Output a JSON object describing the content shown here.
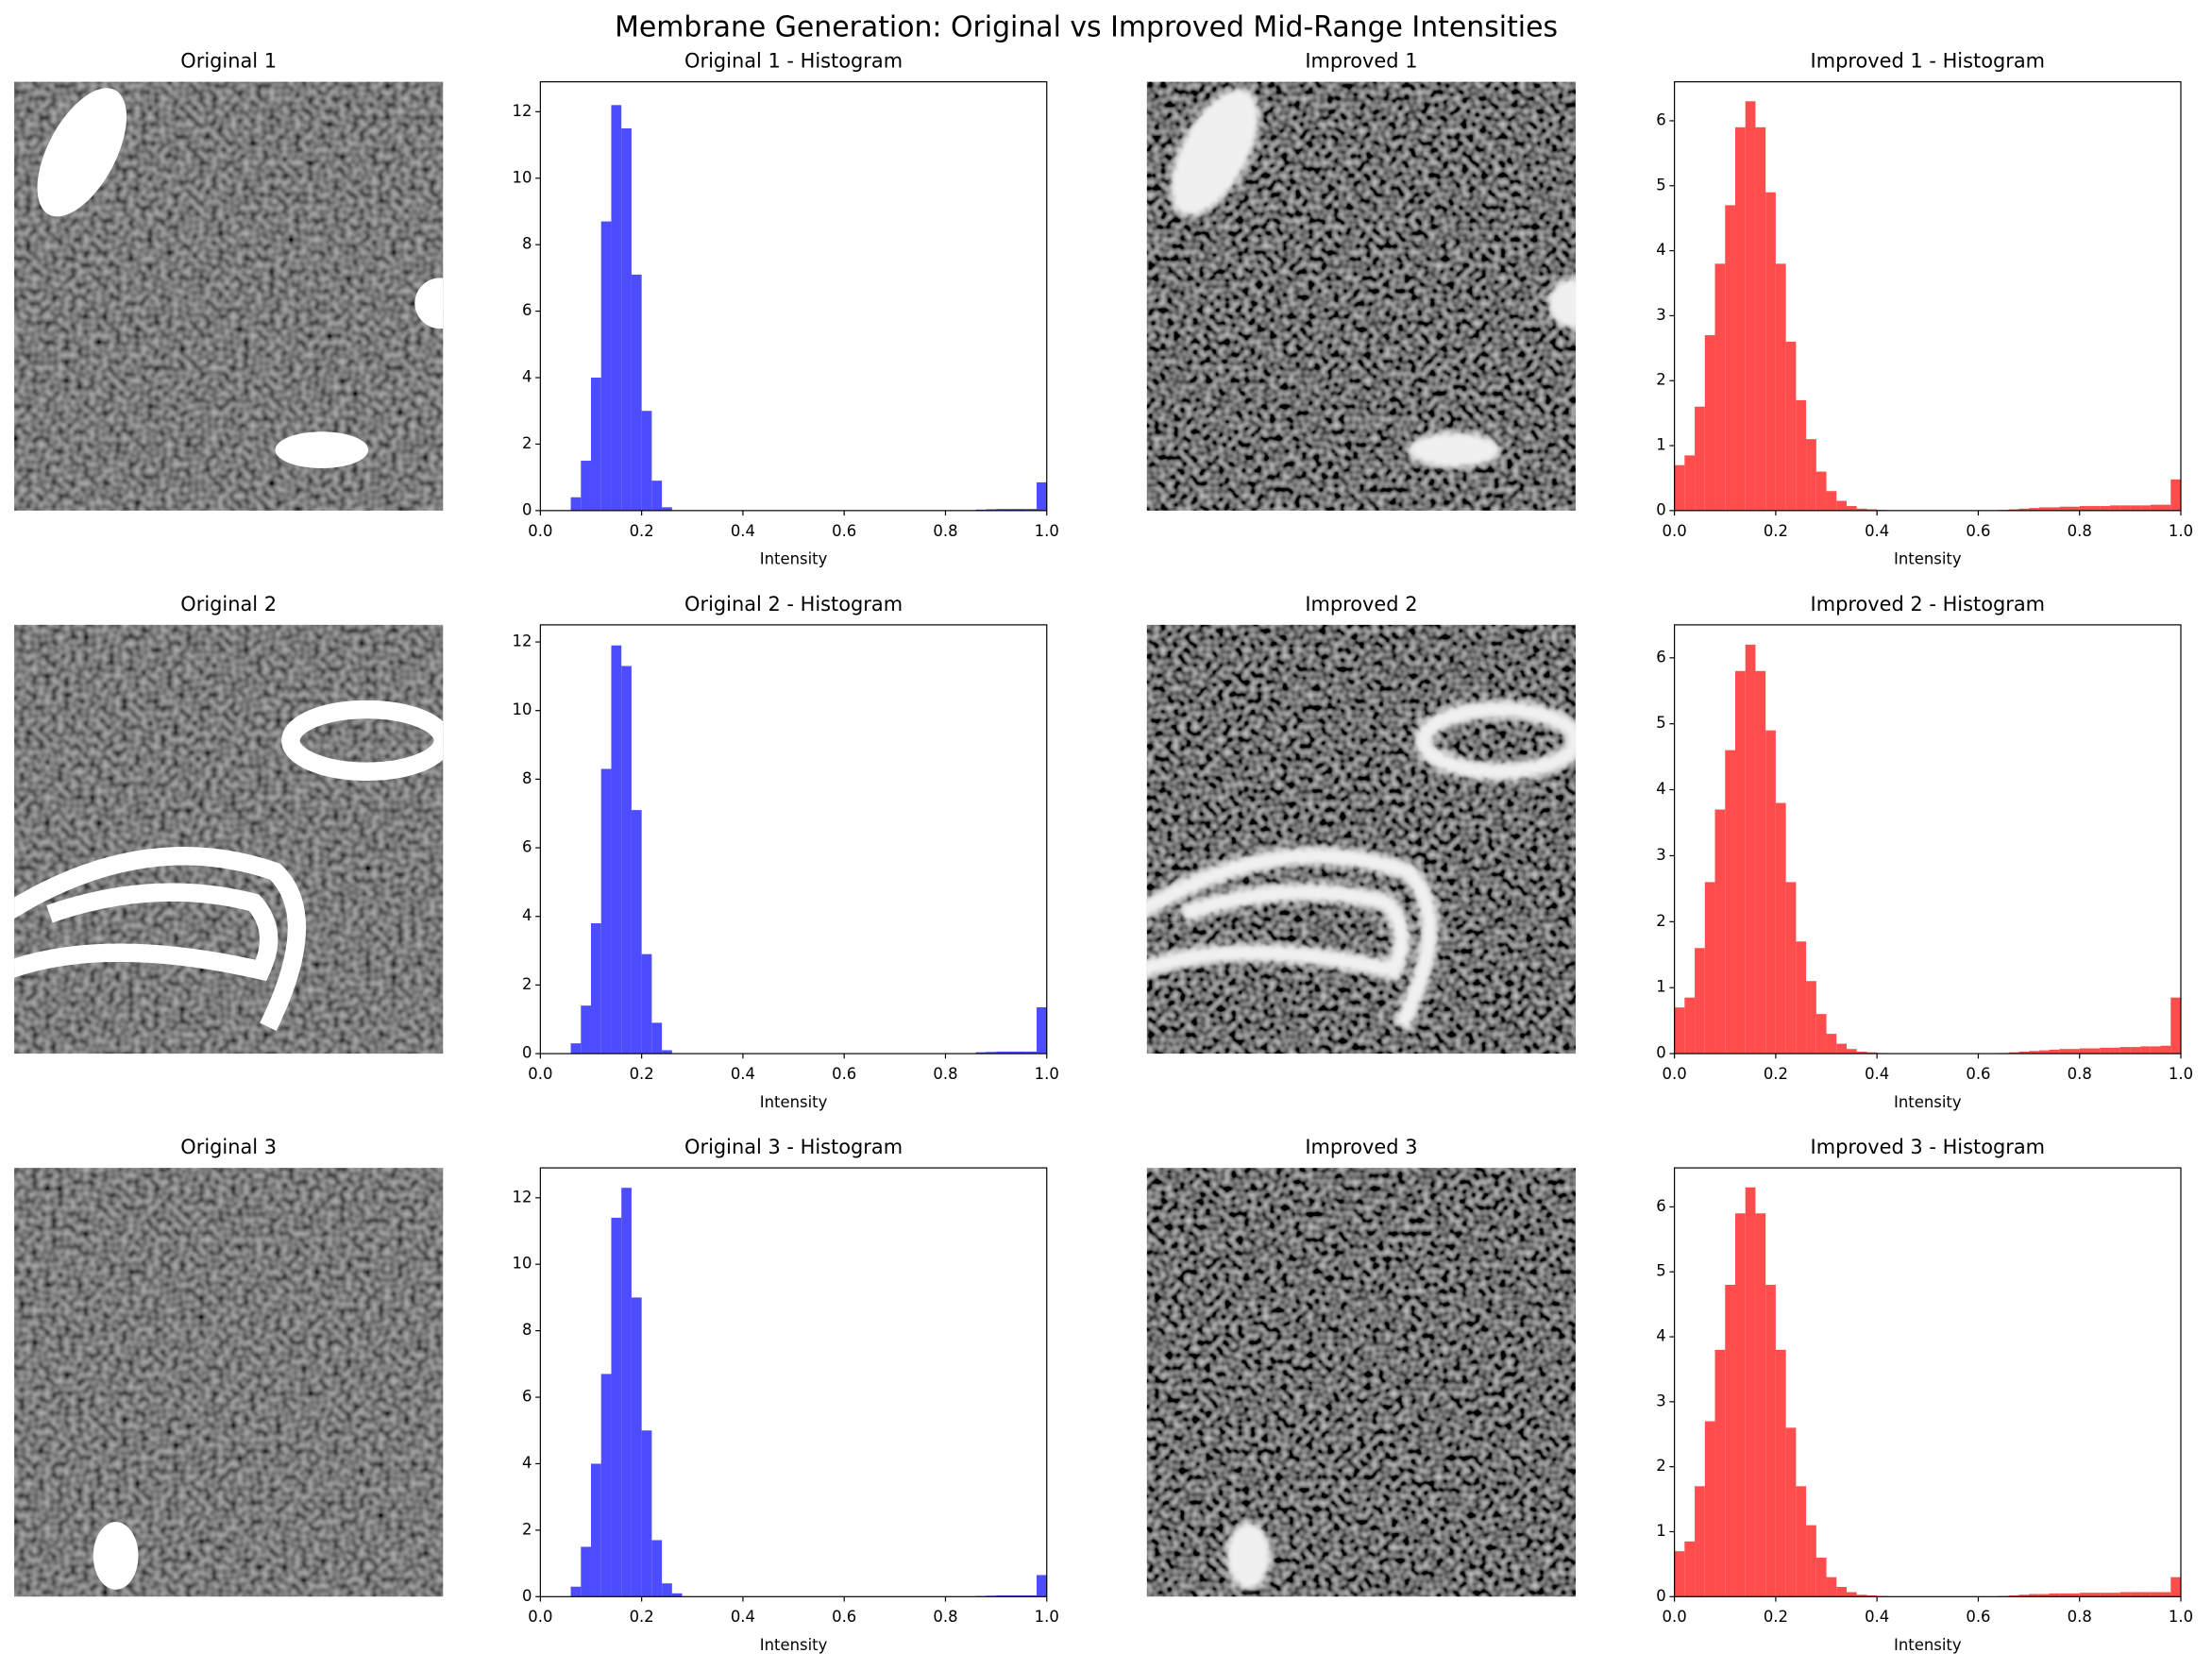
{
  "title": "Membrane Generation: Original vs Improved Mid-Range Intensities",
  "image_panels": [
    {
      "title": "Original 1"
    },
    {
      "title": "Improved 1"
    },
    {
      "title": "Original 2"
    },
    {
      "title": "Improved 2"
    },
    {
      "title": "Original 3"
    },
    {
      "title": "Improved 3"
    }
  ],
  "chart_data": [
    {
      "type": "histogram",
      "title": "Original 1 - Histogram",
      "xlabel": "Intensity",
      "color": "#4d4dff",
      "bins": [
        0,
        0.02,
        0.04,
        0.06,
        0.08,
        0.1,
        0.12,
        0.14,
        0.16,
        0.18,
        0.2,
        0.22,
        0.24,
        0.26,
        0.28,
        0.3,
        0.32,
        0.34,
        0.36,
        0.38,
        0.4,
        0.42,
        0.44,
        0.46,
        0.48,
        0.5,
        0.52,
        0.54,
        0.56,
        0.58,
        0.6,
        0.62,
        0.64,
        0.66,
        0.68,
        0.7,
        0.72,
        0.74,
        0.76,
        0.78,
        0.8,
        0.82,
        0.84,
        0.86,
        0.88,
        0.9,
        0.92,
        0.94,
        0.96,
        0.98,
        1
      ],
      "values": [
        0,
        0,
        0,
        0.4,
        1.5,
        4.0,
        8.7,
        12.2,
        11.5,
        7.1,
        3.0,
        0.9,
        0.1,
        0,
        0,
        0,
        0,
        0,
        0,
        0,
        0,
        0,
        0,
        0,
        0,
        0,
        0,
        0,
        0,
        0,
        0,
        0,
        0,
        0,
        0,
        0,
        0,
        0,
        0,
        0,
        0,
        0,
        0,
        0.03,
        0.04,
        0.05,
        0.05,
        0.05,
        0.05,
        0.85
      ],
      "xlim": [
        0,
        1
      ],
      "xticks": [
        {
          "value": 0,
          "label": "0.0"
        },
        0.2,
        0.4,
        0.6,
        0.8,
        {
          "value": 1,
          "label": "1.0"
        }
      ],
      "ylim": [
        0,
        12.9
      ],
      "yticks": [
        0,
        2,
        4,
        6,
        8,
        10,
        12
      ]
    },
    {
      "type": "histogram",
      "title": "Improved 1 - Histogram",
      "xlabel": "Intensity",
      "color": "#ff4d4d",
      "bins": [
        0,
        0.02,
        0.04,
        0.06,
        0.08,
        0.1,
        0.12,
        0.14,
        0.16,
        0.18,
        0.2,
        0.22,
        0.24,
        0.26,
        0.28,
        0.3,
        0.32,
        0.34,
        0.36,
        0.38,
        0.4,
        0.42,
        0.44,
        0.46,
        0.48,
        0.5,
        0.52,
        0.54,
        0.56,
        0.58,
        0.6,
        0.62,
        0.64,
        0.66,
        0.68,
        0.7,
        0.72,
        0.74,
        0.76,
        0.78,
        0.8,
        0.82,
        0.84,
        0.86,
        0.88,
        0.9,
        0.92,
        0.94,
        0.96,
        0.98,
        1
      ],
      "values": [
        0.7,
        0.85,
        1.6,
        2.7,
        3.8,
        4.7,
        5.9,
        6.3,
        5.9,
        4.9,
        3.8,
        2.6,
        1.7,
        1.1,
        0.6,
        0.3,
        0.15,
        0.07,
        0.03,
        0.02,
        0.01,
        0,
        0,
        0,
        0,
        0,
        0,
        0,
        0,
        0,
        0,
        0,
        0.01,
        0.02,
        0.03,
        0.04,
        0.05,
        0.05,
        0.06,
        0.06,
        0.07,
        0.07,
        0.07,
        0.08,
        0.08,
        0.08,
        0.08,
        0.09,
        0.09,
        0.48
      ],
      "xlim": [
        0,
        1
      ],
      "xticks": [
        {
          "value": 0,
          "label": "0.0"
        },
        0.2,
        0.4,
        0.6,
        0.8,
        {
          "value": 1,
          "label": "1.0"
        }
      ],
      "ylim": [
        0,
        6.6
      ],
      "yticks": [
        0,
        1,
        2,
        3,
        4,
        5,
        6
      ]
    },
    {
      "type": "histogram",
      "title": "Original 2 - Histogram",
      "xlabel": "Intensity",
      "color": "#4d4dff",
      "bins": [
        0,
        0.02,
        0.04,
        0.06,
        0.08,
        0.1,
        0.12,
        0.14,
        0.16,
        0.18,
        0.2,
        0.22,
        0.24,
        0.26,
        0.28,
        0.3,
        0.32,
        0.34,
        0.36,
        0.38,
        0.4,
        0.42,
        0.44,
        0.46,
        0.48,
        0.5,
        0.52,
        0.54,
        0.56,
        0.58,
        0.6,
        0.62,
        0.64,
        0.66,
        0.68,
        0.7,
        0.72,
        0.74,
        0.76,
        0.78,
        0.8,
        0.82,
        0.84,
        0.86,
        0.88,
        0.9,
        0.92,
        0.94,
        0.96,
        0.98,
        1
      ],
      "values": [
        0,
        0,
        0,
        0.3,
        1.4,
        3.8,
        8.3,
        11.9,
        11.3,
        7.1,
        2.9,
        0.9,
        0.1,
        0,
        0,
        0,
        0,
        0,
        0,
        0,
        0,
        0,
        0,
        0,
        0,
        0,
        0,
        0,
        0,
        0,
        0,
        0,
        0,
        0,
        0,
        0,
        0,
        0,
        0,
        0,
        0,
        0,
        0,
        0.04,
        0.05,
        0.06,
        0.06,
        0.06,
        0.06,
        1.35
      ],
      "xlim": [
        0,
        1
      ],
      "xticks": [
        {
          "value": 0,
          "label": "0.0"
        },
        0.2,
        0.4,
        0.6,
        0.8,
        {
          "value": 1,
          "label": "1.0"
        }
      ],
      "ylim": [
        0,
        12.5
      ],
      "yticks": [
        0,
        2,
        4,
        6,
        8,
        10,
        12
      ]
    },
    {
      "type": "histogram",
      "title": "Improved 2 - Histogram",
      "xlabel": "Intensity",
      "color": "#ff4d4d",
      "bins": [
        0,
        0.02,
        0.04,
        0.06,
        0.08,
        0.1,
        0.12,
        0.14,
        0.16,
        0.18,
        0.2,
        0.22,
        0.24,
        0.26,
        0.28,
        0.3,
        0.32,
        0.34,
        0.36,
        0.38,
        0.4,
        0.42,
        0.44,
        0.46,
        0.48,
        0.5,
        0.52,
        0.54,
        0.56,
        0.58,
        0.6,
        0.62,
        0.64,
        0.66,
        0.68,
        0.7,
        0.72,
        0.74,
        0.76,
        0.78,
        0.8,
        0.82,
        0.84,
        0.86,
        0.88,
        0.9,
        0.92,
        0.94,
        0.96,
        0.98,
        1
      ],
      "values": [
        0.7,
        0.85,
        1.6,
        2.6,
        3.7,
        4.6,
        5.8,
        6.2,
        5.8,
        4.9,
        3.8,
        2.6,
        1.7,
        1.1,
        0.6,
        0.3,
        0.15,
        0.07,
        0.03,
        0.02,
        0.01,
        0,
        0,
        0,
        0,
        0,
        0,
        0,
        0,
        0,
        0,
        0,
        0.01,
        0.02,
        0.03,
        0.04,
        0.05,
        0.06,
        0.07,
        0.07,
        0.08,
        0.08,
        0.09,
        0.09,
        0.1,
        0.1,
        0.11,
        0.11,
        0.12,
        0.85
      ],
      "xlim": [
        0,
        1
      ],
      "xticks": [
        {
          "value": 0,
          "label": "0.0"
        },
        0.2,
        0.4,
        0.6,
        0.8,
        {
          "value": 1,
          "label": "1.0"
        }
      ],
      "ylim": [
        0,
        6.5
      ],
      "yticks": [
        0,
        1,
        2,
        3,
        4,
        5,
        6
      ]
    },
    {
      "type": "histogram",
      "title": "Original 3 - Histogram",
      "xlabel": "Intensity",
      "color": "#4d4dff",
      "bins": [
        0,
        0.02,
        0.04,
        0.06,
        0.08,
        0.1,
        0.12,
        0.14,
        0.16,
        0.18,
        0.2,
        0.22,
        0.24,
        0.26,
        0.28,
        0.3,
        0.32,
        0.34,
        0.36,
        0.38,
        0.4,
        0.42,
        0.44,
        0.46,
        0.48,
        0.5,
        0.52,
        0.54,
        0.56,
        0.58,
        0.6,
        0.62,
        0.64,
        0.66,
        0.68,
        0.7,
        0.72,
        0.74,
        0.76,
        0.78,
        0.8,
        0.82,
        0.84,
        0.86,
        0.88,
        0.9,
        0.92,
        0.94,
        0.96,
        0.98,
        1
      ],
      "values": [
        0,
        0,
        0,
        0.3,
        1.5,
        4.0,
        6.7,
        11.4,
        12.3,
        9.0,
        5.0,
        1.7,
        0.4,
        0.1,
        0,
        0,
        0,
        0,
        0,
        0,
        0,
        0,
        0,
        0,
        0,
        0,
        0,
        0,
        0,
        0,
        0,
        0,
        0,
        0,
        0,
        0,
        0,
        0,
        0,
        0,
        0,
        0,
        0,
        0.02,
        0.03,
        0.04,
        0.04,
        0.04,
        0.04,
        0.65
      ],
      "xlim": [
        0,
        1
      ],
      "xticks": [
        {
          "value": 0,
          "label": "0.0"
        },
        0.2,
        0.4,
        0.6,
        0.8,
        {
          "value": 1,
          "label": "1.0"
        }
      ],
      "ylim": [
        0,
        12.9
      ],
      "yticks": [
        0,
        2,
        4,
        6,
        8,
        10,
        12
      ]
    },
    {
      "type": "histogram",
      "title": "Improved 3 - Histogram",
      "xlabel": "Intensity",
      "color": "#ff4d4d",
      "bins": [
        0,
        0.02,
        0.04,
        0.06,
        0.08,
        0.1,
        0.12,
        0.14,
        0.16,
        0.18,
        0.2,
        0.22,
        0.24,
        0.26,
        0.28,
        0.3,
        0.32,
        0.34,
        0.36,
        0.38,
        0.4,
        0.42,
        0.44,
        0.46,
        0.48,
        0.5,
        0.52,
        0.54,
        0.56,
        0.58,
        0.6,
        0.62,
        0.64,
        0.66,
        0.68,
        0.7,
        0.72,
        0.74,
        0.76,
        0.78,
        0.8,
        0.82,
        0.84,
        0.86,
        0.88,
        0.9,
        0.92,
        0.94,
        0.96,
        0.98,
        1
      ],
      "values": [
        0.7,
        0.85,
        1.7,
        2.7,
        3.8,
        4.8,
        5.9,
        6.3,
        5.9,
        4.8,
        3.8,
        2.6,
        1.7,
        1.1,
        0.6,
        0.3,
        0.15,
        0.07,
        0.03,
        0.02,
        0.01,
        0,
        0,
        0,
        0,
        0,
        0,
        0,
        0,
        0,
        0,
        0,
        0.01,
        0.02,
        0.03,
        0.04,
        0.04,
        0.05,
        0.05,
        0.05,
        0.06,
        0.06,
        0.06,
        0.06,
        0.07,
        0.07,
        0.07,
        0.07,
        0.07,
        0.3
      ],
      "xlim": [
        0,
        1
      ],
      "xticks": [
        {
          "value": 0,
          "label": "0.0"
        },
        0.2,
        0.4,
        0.6,
        0.8,
        {
          "value": 1,
          "label": "1.0"
        }
      ],
      "ylim": [
        0,
        6.6
      ],
      "yticks": [
        0,
        1,
        2,
        3,
        4,
        5,
        6
      ]
    }
  ]
}
